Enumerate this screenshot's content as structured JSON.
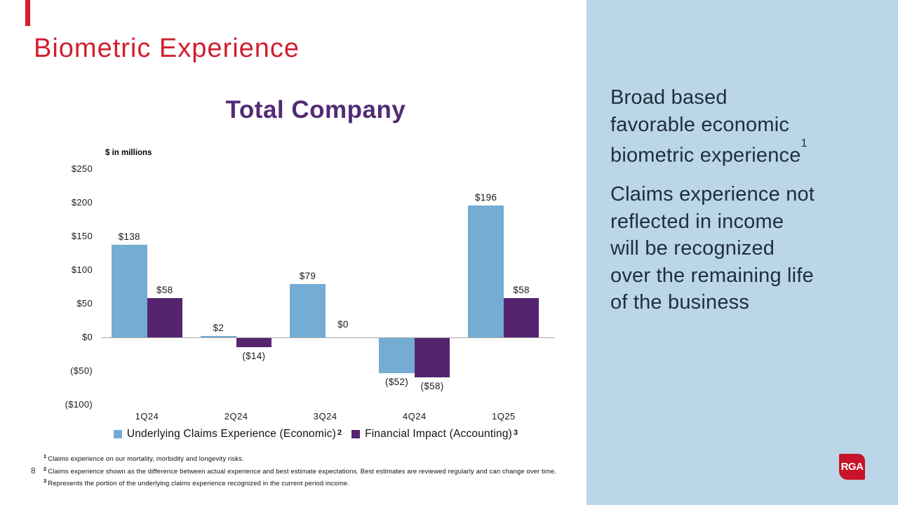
{
  "slide": {
    "title": "Biometric Experience",
    "page_number": "8",
    "logo_text": "RGA"
  },
  "colors": {
    "title_red": "#D21E2E",
    "chart_title_purple": "#512C74",
    "series_blue": "#74ACD3",
    "series_purple": "#542470",
    "sidebar_bg": "#BAD6E8",
    "sidebar_text": "#222E3C",
    "axis_gray": "#A8A8A8",
    "logo_red": "#C81428"
  },
  "chart_data": {
    "type": "bar",
    "title": "Total Company",
    "units": "$ in millions",
    "categories": [
      "1Q24",
      "2Q24",
      "3Q24",
      "4Q24",
      "1Q25"
    ],
    "series": [
      {
        "name": "Underlying Claims Experience (Economic)",
        "sup": "2",
        "color": "#74ACD3",
        "values": [
          138,
          2,
          79,
          -52,
          196
        ],
        "labels": [
          "$138",
          "$2",
          "$79",
          "($52)",
          "$196"
        ]
      },
      {
        "name": "Financial Impact (Accounting)",
        "sup": "3",
        "color": "#542470",
        "values": [
          58,
          -14,
          0,
          -58,
          58
        ],
        "labels": [
          "$58",
          "($14)",
          "$0",
          "($58)",
          "$58"
        ]
      }
    ],
    "y_ticks": [
      {
        "value": 250,
        "label": "$250"
      },
      {
        "value": 200,
        "label": "$200"
      },
      {
        "value": 150,
        "label": "$150"
      },
      {
        "value": 100,
        "label": "$100"
      },
      {
        "value": 50,
        "label": "$50"
      },
      {
        "value": 0,
        "label": "$0"
      },
      {
        "value": -50,
        "label": "($50)"
      },
      {
        "value": -100,
        "label": "($100)"
      }
    ],
    "ylim": [
      -100,
      250
    ],
    "grid": false,
    "legend_position": "bottom"
  },
  "footnotes": [
    {
      "sup": "1",
      "text": "Claims experience on our mortality, morbidity and longevity risks."
    },
    {
      "sup": "2",
      "text": "Claims experience shown as the difference between actual experience and best estimate expectations. Best estimates are reviewed regularly and can change over time."
    },
    {
      "sup": "3",
      "text": "Represents the portion of the underlying claims experience recognized in the current period income."
    }
  ],
  "sidebar": {
    "para1": {
      "lines": [
        "Broad based",
        "favorable economic",
        "biometric experience"
      ],
      "sup": "1"
    },
    "para2": {
      "lines": [
        "Claims experience not",
        "reflected in income",
        "will be recognized",
        "over the remaining life",
        "of the business"
      ]
    }
  }
}
